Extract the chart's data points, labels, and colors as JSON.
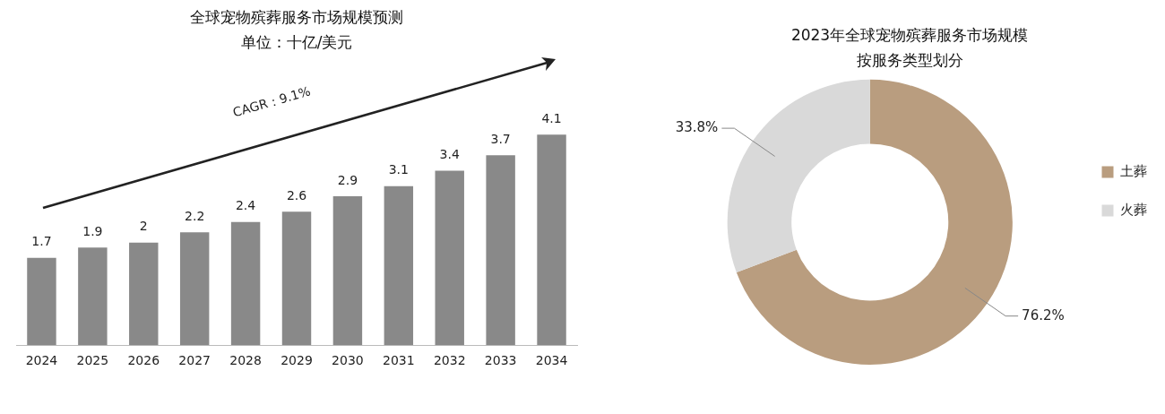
{
  "chart_data": [
    {
      "type": "bar",
      "title": "全球宠物殡葬服务市场规模预测",
      "subtitle": "单位：十亿/美元",
      "categories": [
        "2024",
        "2025",
        "2026",
        "2027",
        "2028",
        "2029",
        "2030",
        "2031",
        "2032",
        "2033",
        "2034"
      ],
      "values": [
        1.7,
        1.9,
        2,
        2.2,
        2.4,
        2.6,
        2.9,
        3.1,
        3.4,
        3.7,
        4.1
      ],
      "color": "#898989",
      "data_labels": true,
      "tick_labels": "x",
      "annotations": [
        "CAGR：9.1%"
      ]
    },
    {
      "type": "donut",
      "title": "2023年全球宠物殡葬服务市场规模",
      "subtitle": "按服务类型划分",
      "categories": [
        "土葬",
        "火葬"
      ],
      "values": [
        76.2,
        33.8
      ],
      "colors": [
        "#b99d7f",
        "#d9d9d9"
      ],
      "value_labels": [
        "76.2%",
        "33.8%"
      ],
      "legend": "right"
    }
  ]
}
